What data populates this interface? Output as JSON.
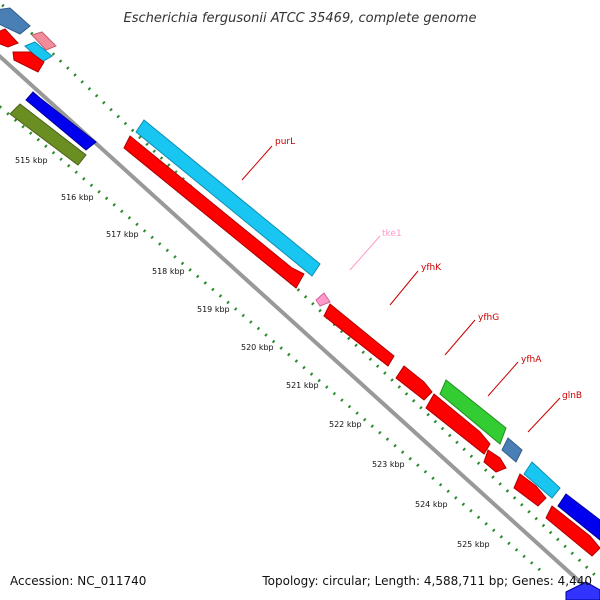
{
  "title": "Escherichia fergusonii ATCC 35469, complete genome",
  "accession": "Accession: NC_011740",
  "summary": "Topology: circular; Length: 4,588,711 bp; Genes: 4,440",
  "colors": {
    "backbone": "#999999",
    "tick_dots": "#2e8b2e",
    "red": "#ff0000",
    "cyan": "#19c6f2",
    "steel_blue": "#4a7fb5",
    "blue": "#0000ee",
    "olive": "#6b8e23",
    "green": "#33cc33",
    "pink": "#ff99cc",
    "label_red": "#cc0000",
    "label_pink": "#ff99cc"
  },
  "ticks": [
    "515 kbp",
    "516 kbp",
    "517 kbp",
    "518 kbp",
    "519 kbp",
    "520 kbp",
    "521 kbp",
    "522 kbp",
    "523 kbp",
    "524 kbp",
    "525 kbp"
  ],
  "gene_labels": [
    {
      "name": "purL",
      "color": "#cc0000"
    },
    {
      "name": "tke1",
      "color": "#ff99cc"
    },
    {
      "name": "yfhK",
      "color": "#cc0000"
    },
    {
      "name": "yfhG",
      "color": "#cc0000"
    },
    {
      "name": "yfhA",
      "color": "#cc0000"
    },
    {
      "name": "glnB",
      "color": "#cc0000"
    }
  ]
}
